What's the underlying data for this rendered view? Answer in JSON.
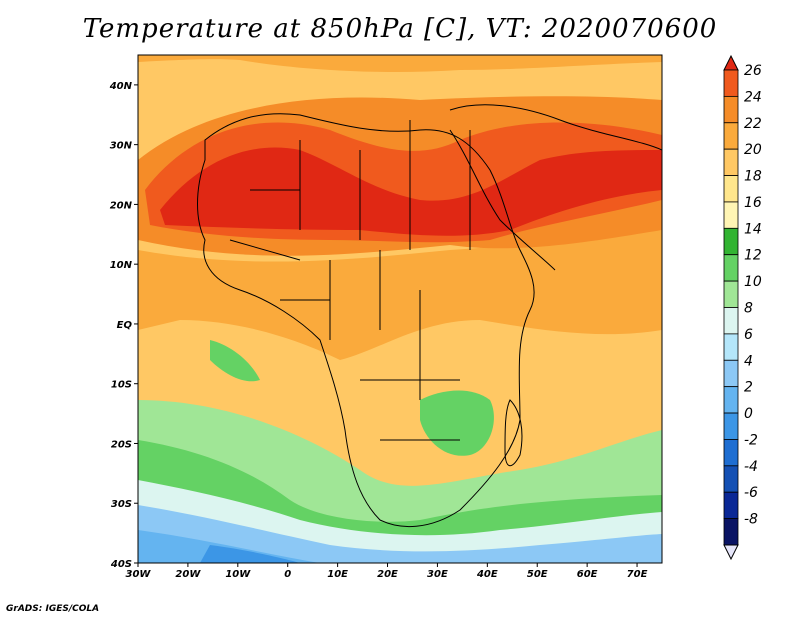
{
  "title": "Temperature at 850hPa [C], VT: 2020070600",
  "credit": "GrADS: IGES/COLA",
  "map": {
    "lon_range": [
      -30,
      75
    ],
    "lat_range": [
      -40,
      45
    ],
    "lon_ticks": [
      "30W",
      "20W",
      "10W",
      "0",
      "10E",
      "20E",
      "30E",
      "40E",
      "50E",
      "60E",
      "70E"
    ],
    "lat_ticks": [
      "40S",
      "30S",
      "20S",
      "10S",
      "EQ",
      "10N",
      "20N",
      "30N",
      "40N"
    ]
  },
  "colorbar": {
    "labels": [
      "26",
      "24",
      "22",
      "20",
      "18",
      "16",
      "14",
      "12",
      "10",
      "8",
      "6",
      "4",
      "2",
      "0",
      "-2",
      "-4",
      "-6",
      "-8"
    ],
    "colors": [
      "#e02814",
      "#f05a1e",
      "#f58c28",
      "#faaa3c",
      "#ffc864",
      "#ffe68c",
      "#fff5b4",
      "#32b432",
      "#64d264",
      "#a0e696",
      "#dcf5f0",
      "#b4e6fa",
      "#8cc8f5",
      "#64b4f0",
      "#3c96e6",
      "#1e6ed2",
      "#1450b4",
      "#0a2896",
      "#0a1464",
      "#e6e6fa"
    ]
  },
  "chart_data": {
    "type": "heatmap",
    "title": "Temperature at 850hPa [C], VT: 2020070600",
    "x_ticks": [
      "30W",
      "20W",
      "10W",
      "0",
      "10E",
      "20E",
      "30E",
      "40E",
      "50E",
      "60E",
      "70E"
    ],
    "y_ticks": [
      "40S",
      "30S",
      "20S",
      "10S",
      "EQ",
      "10N",
      "20N",
      "30N",
      "40N"
    ],
    "xlim": [
      -30,
      75
    ],
    "ylim": [
      -40,
      45
    ],
    "colorbar_levels": [
      -8,
      -6,
      -4,
      -2,
      0,
      2,
      4,
      6,
      8,
      10,
      12,
      14,
      16,
      18,
      20,
      22,
      24,
      26
    ]
  }
}
